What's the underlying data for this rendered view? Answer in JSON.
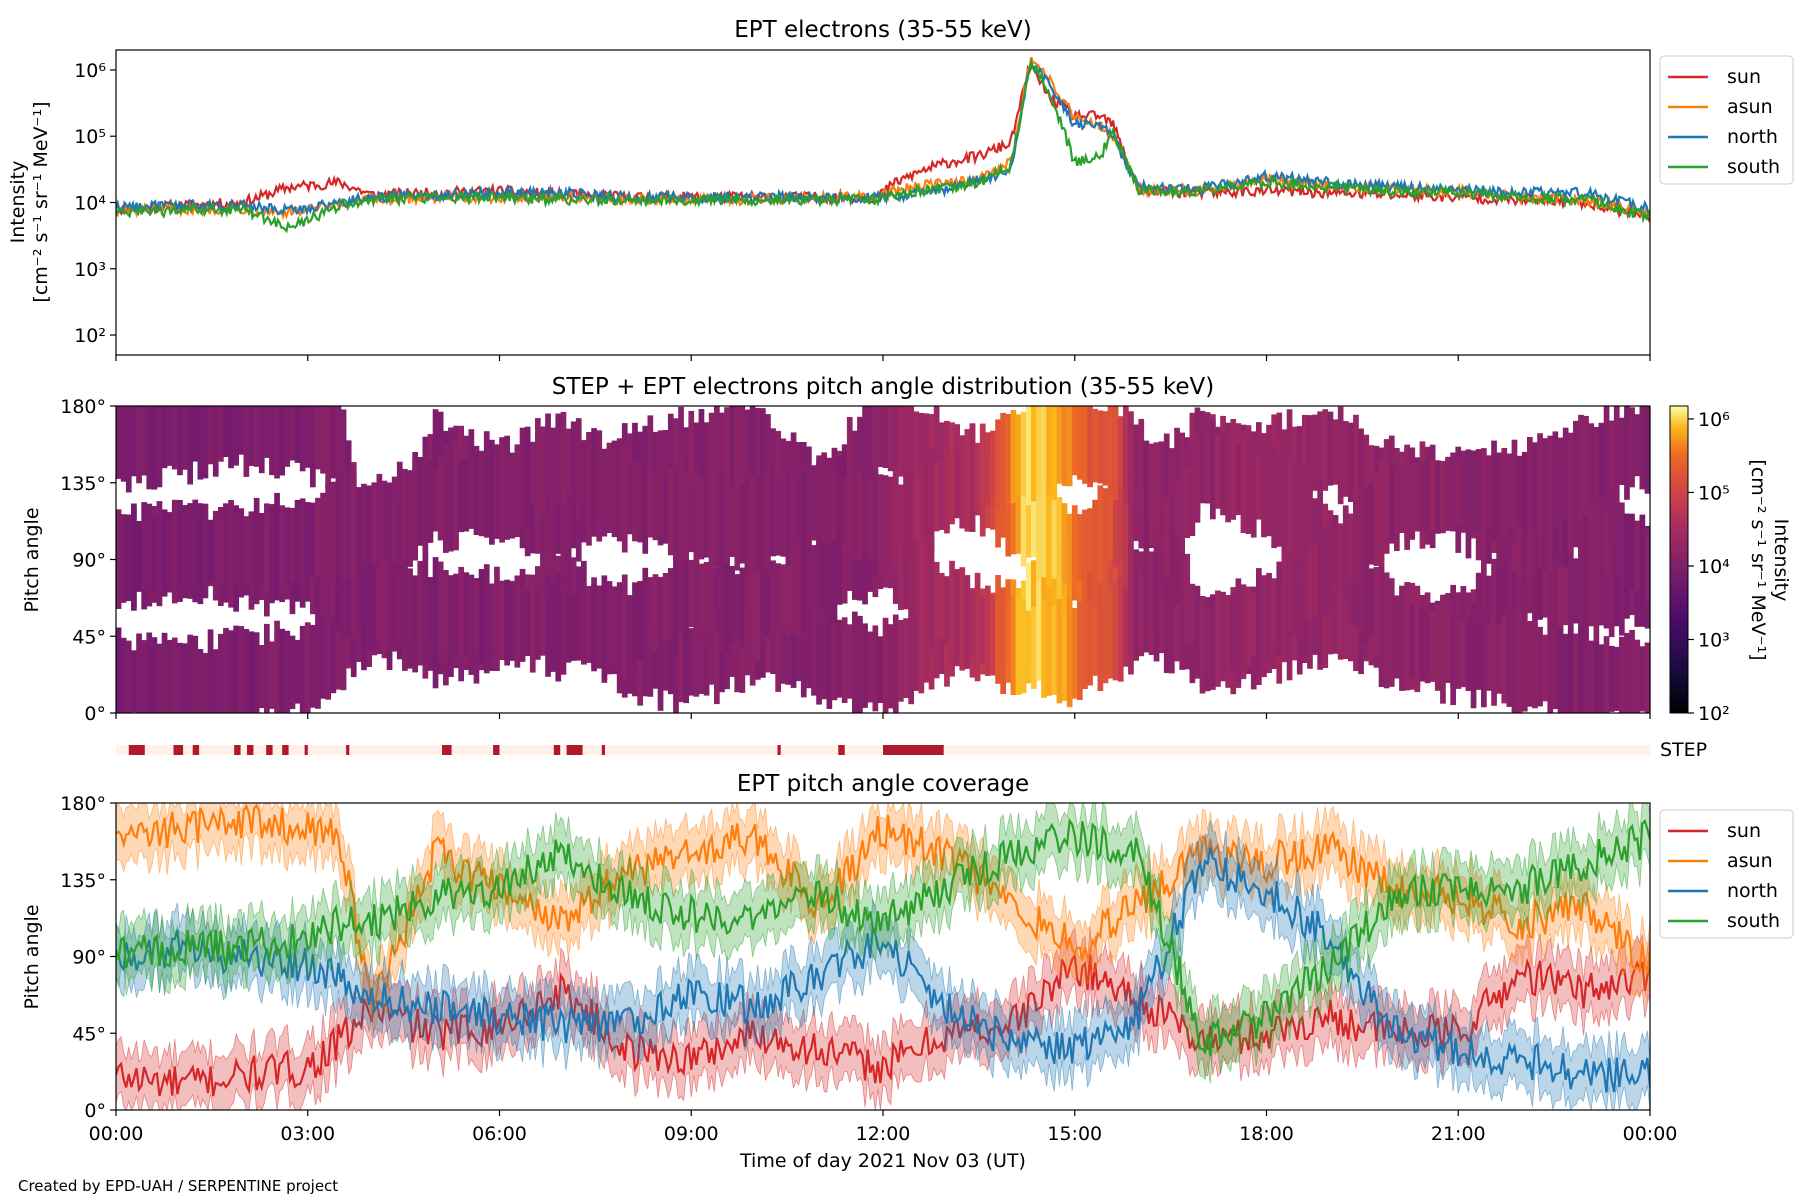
{
  "footer": {
    "credit": "Created by EPD-UAH / SERPENTINE project"
  },
  "colors": {
    "sun": "#d62728",
    "asun": "#ff7f0e",
    "north": "#1f77b4",
    "south": "#2ca02c",
    "step_bar": "#b2182b",
    "step_bg": "#fff0ea"
  },
  "chart_data": [
    {
      "type": "line",
      "title": "EPT electrons (35-55 keV)",
      "ylabel": [
        "Intensity",
        "[cm⁻² s⁻¹ sr⁻¹ MeV⁻¹]"
      ],
      "yscale": "log",
      "ylim": [
        50,
        2000000
      ],
      "yticks": [
        {
          "v": 100,
          "label": "10²"
        },
        {
          "v": 1000,
          "label": "10³"
        },
        {
          "v": 10000,
          "label": "10⁴"
        },
        {
          "v": 100000,
          "label": "10⁵"
        },
        {
          "v": 1000000,
          "label": "10⁶"
        }
      ],
      "xlim_hours": [
        0,
        24
      ],
      "legend": "outside-right",
      "series": [
        {
          "name": "sun",
          "color": "#d62728",
          "x": [
            0,
            1,
            2,
            2.7,
            3.5,
            4,
            5,
            6,
            7,
            8,
            9,
            10,
            11,
            11.9,
            12.2,
            12.6,
            13,
            13.5,
            14,
            14.3,
            14.6,
            15,
            15.4,
            15.6,
            16,
            17,
            18,
            19,
            20,
            21,
            22,
            23,
            24
          ],
          "y": [
            8000,
            9000,
            10000,
            17000,
            20000,
            13000,
            14000,
            15000,
            13000,
            12000,
            12000,
            12000,
            12000,
            12000,
            20000,
            30000,
            40000,
            50000,
            80000,
            1200000,
            400000,
            200000,
            200000,
            150000,
            15000,
            14000,
            15000,
            14000,
            13000,
            12000,
            11000,
            10000,
            6000
          ]
        },
        {
          "name": "asun",
          "color": "#ff7f0e",
          "x": [
            0,
            1,
            2,
            2.7,
            3.5,
            4,
            5,
            6,
            7,
            8,
            9,
            10,
            11,
            11.9,
            12.2,
            12.6,
            13,
            13.5,
            14,
            14.3,
            14.6,
            15,
            15.4,
            15.6,
            16,
            17,
            18,
            19,
            20,
            21,
            22,
            23,
            24
          ],
          "y": [
            7500,
            8000,
            8000,
            7000,
            9000,
            11000,
            12000,
            12000,
            12000,
            11000,
            11000,
            11000,
            12000,
            12000,
            15000,
            18000,
            20000,
            22000,
            40000,
            1400000,
            700000,
            200000,
            150000,
            100000,
            16000,
            15000,
            22000,
            18000,
            16000,
            15000,
            12000,
            11000,
            7000
          ]
        },
        {
          "name": "north",
          "color": "#1f77b4",
          "x": [
            0,
            1,
            2,
            2.7,
            3.5,
            4,
            5,
            6,
            7,
            8,
            9,
            10,
            11,
            11.9,
            12.2,
            12.6,
            13,
            13.5,
            14,
            14.3,
            14.6,
            15,
            15.4,
            15.6,
            16,
            17,
            18,
            19,
            20,
            21,
            22,
            23,
            24
          ],
          "y": [
            8500,
            9000,
            9000,
            7500,
            10000,
            12000,
            13000,
            14000,
            14000,
            12000,
            12000,
            12000,
            12000,
            12000,
            12000,
            14000,
            16000,
            22000,
            30000,
            1300000,
            600000,
            150000,
            150000,
            100000,
            17000,
            16000,
            25000,
            20000,
            17000,
            16000,
            14000,
            14000,
            8000
          ]
        },
        {
          "name": "south",
          "color": "#2ca02c",
          "x": [
            0,
            1,
            2,
            2.7,
            3.5,
            4,
            5,
            6,
            7,
            8,
            9,
            10,
            11,
            11.9,
            12.2,
            12.6,
            13,
            13.5,
            14,
            14.3,
            14.6,
            15,
            15.4,
            15.6,
            16,
            17,
            18,
            19,
            20,
            21,
            22,
            23,
            24
          ],
          "y": [
            7000,
            7500,
            8000,
            4000,
            9000,
            11000,
            12000,
            12000,
            11000,
            11000,
            11000,
            11000,
            11000,
            11000,
            13000,
            15000,
            17000,
            20000,
            35000,
            1300000,
            500000,
            40000,
            50000,
            120000,
            15000,
            15000,
            20000,
            17000,
            15000,
            14000,
            12000,
            11000,
            6000
          ]
        }
      ]
    },
    {
      "type": "heatmap",
      "title": "STEP + EPT electrons pitch angle distribution (35-55 keV)",
      "ylabel": "Pitch angle",
      "ylim": [
        0,
        180
      ],
      "yticks": [
        "0°",
        "45°",
        "90°",
        "135°",
        "180°"
      ],
      "colorbar": {
        "label": [
          "Intensity",
          "[cm⁻² s⁻¹ sr⁻¹ MeV⁻¹]"
        ],
        "scale": "log",
        "range": [
          100,
          1500000
        ],
        "ticks": [
          "10²",
          "10³",
          "10⁴",
          "10⁵",
          "10⁶"
        ]
      },
      "intensity_by_hour": {
        "x": [
          0,
          3.5,
          11.9,
          12.5,
          13.5,
          14.2,
          14.7,
          15.2,
          15.6,
          16,
          18,
          20,
          24
        ],
        "y": [
          8000,
          10000,
          12000,
          25000,
          40000,
          1000000,
          800000,
          200000,
          150000,
          15000,
          20000,
          15000,
          10000
        ]
      },
      "step_label": "STEP",
      "step_segments_hours": [
        [
          0.2,
          0.45
        ],
        [
          0.9,
          1.05
        ],
        [
          1.2,
          1.3
        ],
        [
          1.85,
          1.95
        ],
        [
          2.05,
          2.15
        ],
        [
          2.35,
          2.45
        ],
        [
          2.6,
          2.7
        ],
        [
          2.95,
          3.0
        ],
        [
          3.6,
          3.65
        ],
        [
          5.1,
          5.25
        ],
        [
          5.9,
          6.0
        ],
        [
          6.85,
          6.95
        ],
        [
          7.05,
          7.3
        ],
        [
          7.6,
          7.65
        ],
        [
          10.35,
          10.4
        ],
        [
          11.3,
          11.4
        ],
        [
          12.0,
          12.95
        ]
      ]
    },
    {
      "type": "line",
      "title": "EPT pitch angle coverage",
      "ylabel": "Pitch angle",
      "ylim": [
        0,
        180
      ],
      "yticks": [
        "0°",
        "45°",
        "90°",
        "135°",
        "180°"
      ],
      "xlabel": "Time of day 2021 Nov 03 (UT)",
      "xticks": [
        "00:00",
        "03:00",
        "06:00",
        "09:00",
        "12:00",
        "15:00",
        "18:00",
        "21:00",
        "00:00"
      ],
      "legend": "outside-right",
      "series": [
        {
          "name": "sun",
          "color": "#d62728",
          "x": [
            0,
            1,
            2,
            3,
            3.5,
            4,
            5,
            6,
            7,
            8,
            9,
            10,
            11,
            12,
            13,
            14,
            15,
            16,
            17,
            18,
            19,
            20,
            21,
            22,
            23,
            24
          ],
          "y": [
            20,
            15,
            20,
            25,
            40,
            60,
            45,
            50,
            70,
            35,
            30,
            45,
            35,
            25,
            45,
            50,
            85,
            65,
            40,
            45,
            55,
            45,
            45,
            80,
            70,
            80
          ]
        },
        {
          "name": "asun",
          "color": "#ff7f0e",
          "x": [
            0,
            1,
            2,
            3,
            3.5,
            4,
            5,
            6,
            7,
            8,
            9,
            10,
            11,
            12,
            13,
            14,
            15,
            16,
            17,
            18,
            19,
            20,
            21,
            22,
            23,
            24
          ],
          "y": [
            160,
            165,
            170,
            165,
            160,
            60,
            150,
            130,
            110,
            140,
            150,
            160,
            120,
            165,
            150,
            120,
            95,
            120,
            150,
            145,
            155,
            130,
            125,
            110,
            120,
            85
          ]
        },
        {
          "name": "north",
          "color": "#1f77b4",
          "x": [
            0,
            1,
            2,
            3,
            3.5,
            4,
            5,
            6,
            7,
            8,
            9,
            10,
            11,
            12,
            13,
            14,
            15,
            16,
            17,
            18,
            19,
            20,
            21,
            22,
            23,
            24
          ],
          "y": [
            90,
            95,
            90,
            85,
            75,
            65,
            60,
            55,
            50,
            50,
            70,
            60,
            80,
            100,
            60,
            40,
            35,
            55,
            145,
            130,
            100,
            45,
            35,
            30,
            20,
            20
          ]
        },
        {
          "name": "south",
          "color": "#2ca02c",
          "x": [
            0,
            1,
            2,
            3,
            3.5,
            4,
            5,
            6,
            7,
            8,
            9,
            10,
            11,
            12,
            13,
            14,
            15,
            16,
            17,
            18,
            19,
            20,
            21,
            22,
            23,
            24
          ],
          "y": [
            90,
            95,
            95,
            100,
            110,
            110,
            125,
            130,
            150,
            125,
            115,
            110,
            125,
            110,
            130,
            150,
            160,
            150,
            40,
            55,
            85,
            125,
            130,
            130,
            145,
            160
          ]
        }
      ]
    }
  ]
}
